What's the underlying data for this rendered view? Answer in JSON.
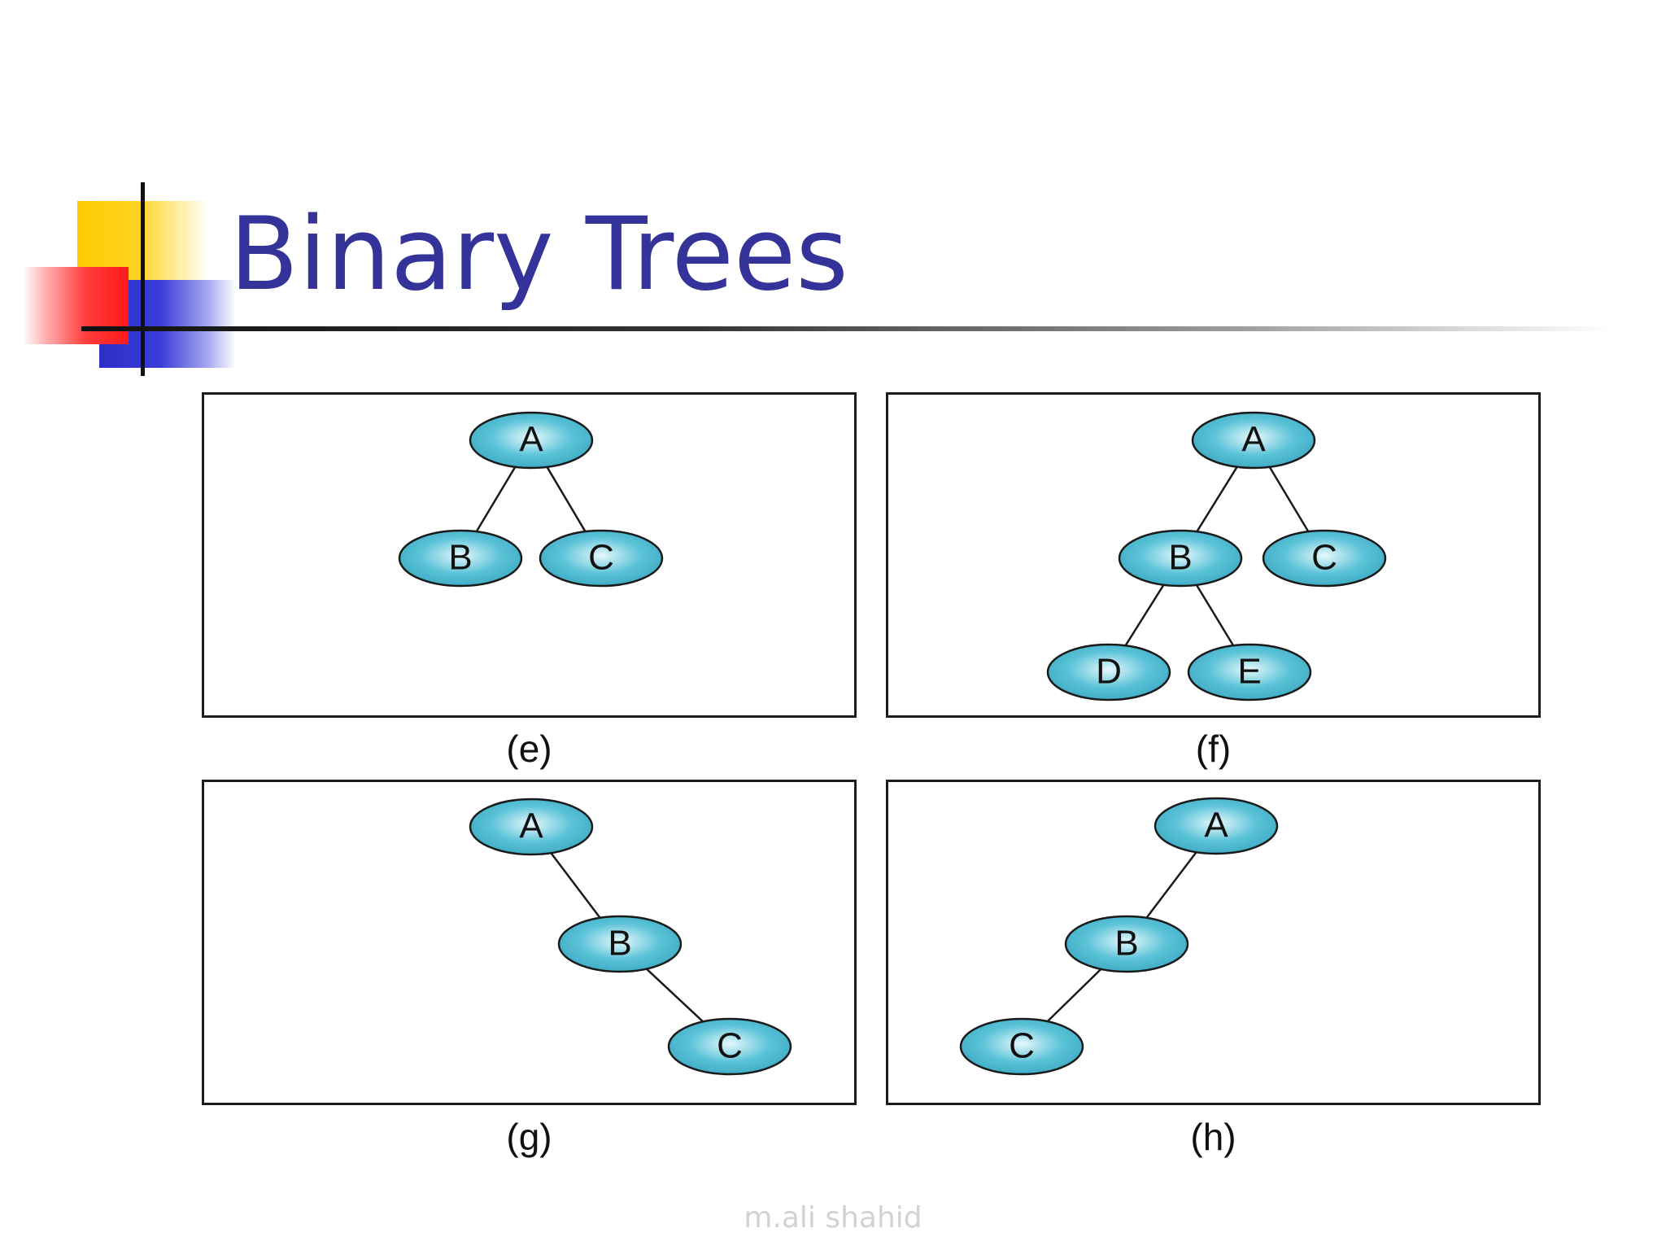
{
  "title": "Binary Trees",
  "watermark": "m.ali shahid",
  "colors": {
    "title": "#333399",
    "node_fill": "#5bc3d8",
    "node_stroke": "#1a1a1a",
    "edge": "#1a1a1a",
    "frame": "#1c1c1c"
  },
  "panels": [
    {
      "id": "e",
      "caption": "(e)",
      "nodes": [
        {
          "id": "A",
          "label": "A"
        },
        {
          "id": "B",
          "label": "B"
        },
        {
          "id": "C",
          "label": "C"
        }
      ],
      "edges": [
        [
          "A",
          "B"
        ],
        [
          "A",
          "C"
        ]
      ]
    },
    {
      "id": "f",
      "caption": "(f)",
      "nodes": [
        {
          "id": "A",
          "label": "A"
        },
        {
          "id": "B",
          "label": "B"
        },
        {
          "id": "C",
          "label": "C"
        },
        {
          "id": "D",
          "label": "D"
        },
        {
          "id": "E",
          "label": "E"
        }
      ],
      "edges": [
        [
          "A",
          "B"
        ],
        [
          "A",
          "C"
        ],
        [
          "B",
          "D"
        ],
        [
          "B",
          "E"
        ]
      ]
    },
    {
      "id": "g",
      "caption": "(g)",
      "nodes": [
        {
          "id": "A",
          "label": "A"
        },
        {
          "id": "B",
          "label": "B"
        },
        {
          "id": "C",
          "label": "C"
        }
      ],
      "edges": [
        [
          "A",
          "B"
        ],
        [
          "B",
          "C"
        ]
      ]
    },
    {
      "id": "h",
      "caption": "(h)",
      "nodes": [
        {
          "id": "A",
          "label": "A"
        },
        {
          "id": "B",
          "label": "B"
        },
        {
          "id": "C",
          "label": "C"
        }
      ],
      "edges": [
        [
          "A",
          "B"
        ],
        [
          "B",
          "C"
        ]
      ]
    }
  ]
}
